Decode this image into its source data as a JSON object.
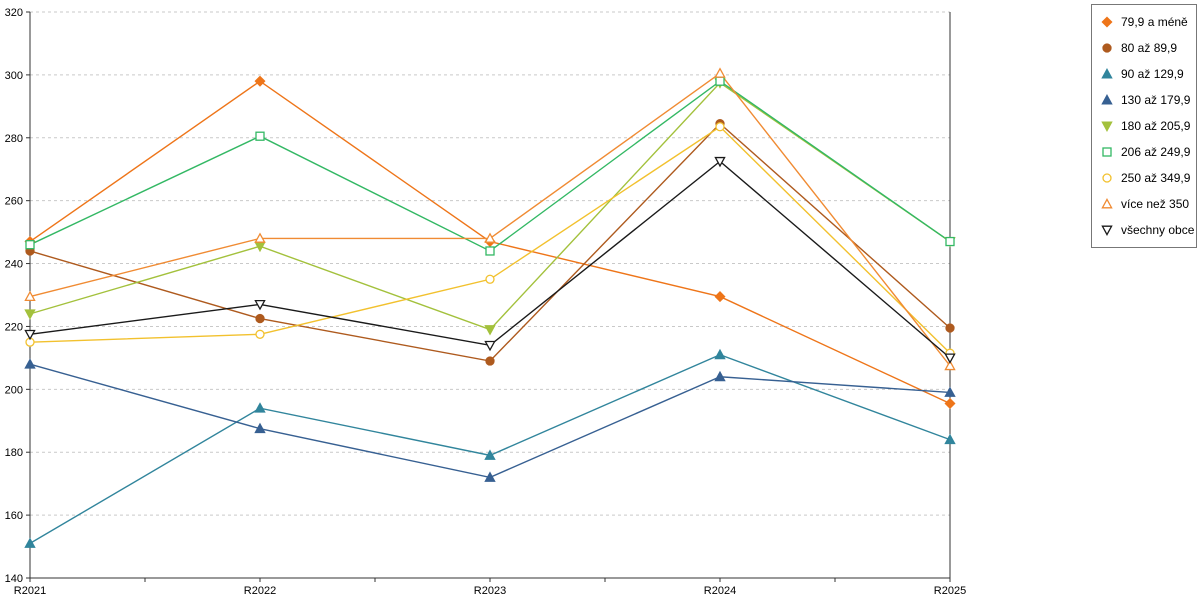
{
  "chart_data": {
    "type": "line",
    "title": "",
    "xlabel": "",
    "ylabel": "",
    "categories": [
      "R2021",
      "R2022",
      "R2023",
      "R2024",
      "R2025"
    ],
    "series": [
      {
        "name": "79,9 a méně",
        "marker": "diamond",
        "filled": true,
        "color": "#EE7519",
        "values": [
          247,
          298,
          247,
          229.5,
          195.5
        ]
      },
      {
        "name": "80 až 89,9",
        "marker": "circle",
        "filled": true,
        "color": "#AE5A1E",
        "values": [
          244,
          222.5,
          209,
          284.5,
          219.5
        ]
      },
      {
        "name": "90 až 129,9",
        "marker": "triangle-up",
        "filled": true,
        "color": "#31859C",
        "values": [
          151,
          194,
          179,
          211,
          184
        ]
      },
      {
        "name": "130 až 179,9",
        "marker": "triangle-up",
        "filled": true,
        "color": "#376092",
        "values": [
          208,
          187.5,
          172,
          204,
          199
        ]
      },
      {
        "name": "180 až 205,9",
        "marker": "triangle-down",
        "filled": true,
        "color": "#A3C13C",
        "values": [
          224,
          245.5,
          219,
          297.5,
          247
        ]
      },
      {
        "name": "206 až 249,9",
        "marker": "square",
        "filled": false,
        "color": "#33B864",
        "values": [
          246,
          280.5,
          244,
          298,
          247
        ]
      },
      {
        "name": "250 až 349,9",
        "marker": "circle",
        "filled": false,
        "color": "#F2C12E",
        "values": [
          215,
          217.5,
          235,
          283.5,
          211.5
        ]
      },
      {
        "name": "více než 350",
        "marker": "triangle-up",
        "filled": false,
        "color": "#F08B33",
        "values": [
          229.5,
          248,
          248,
          300.5,
          207.5
        ]
      },
      {
        "name": "všechny obce",
        "marker": "triangle-down",
        "filled": false,
        "color": "#1A1A1A",
        "values": [
          217.5,
          227,
          214,
          272.5,
          210
        ]
      }
    ],
    "ylim": [
      140,
      320
    ],
    "ytick_step": 20,
    "grid": "horizontal-dashed",
    "legend_position": "right",
    "axis_color": "#333333",
    "grid_color": "#c9c9c9"
  }
}
